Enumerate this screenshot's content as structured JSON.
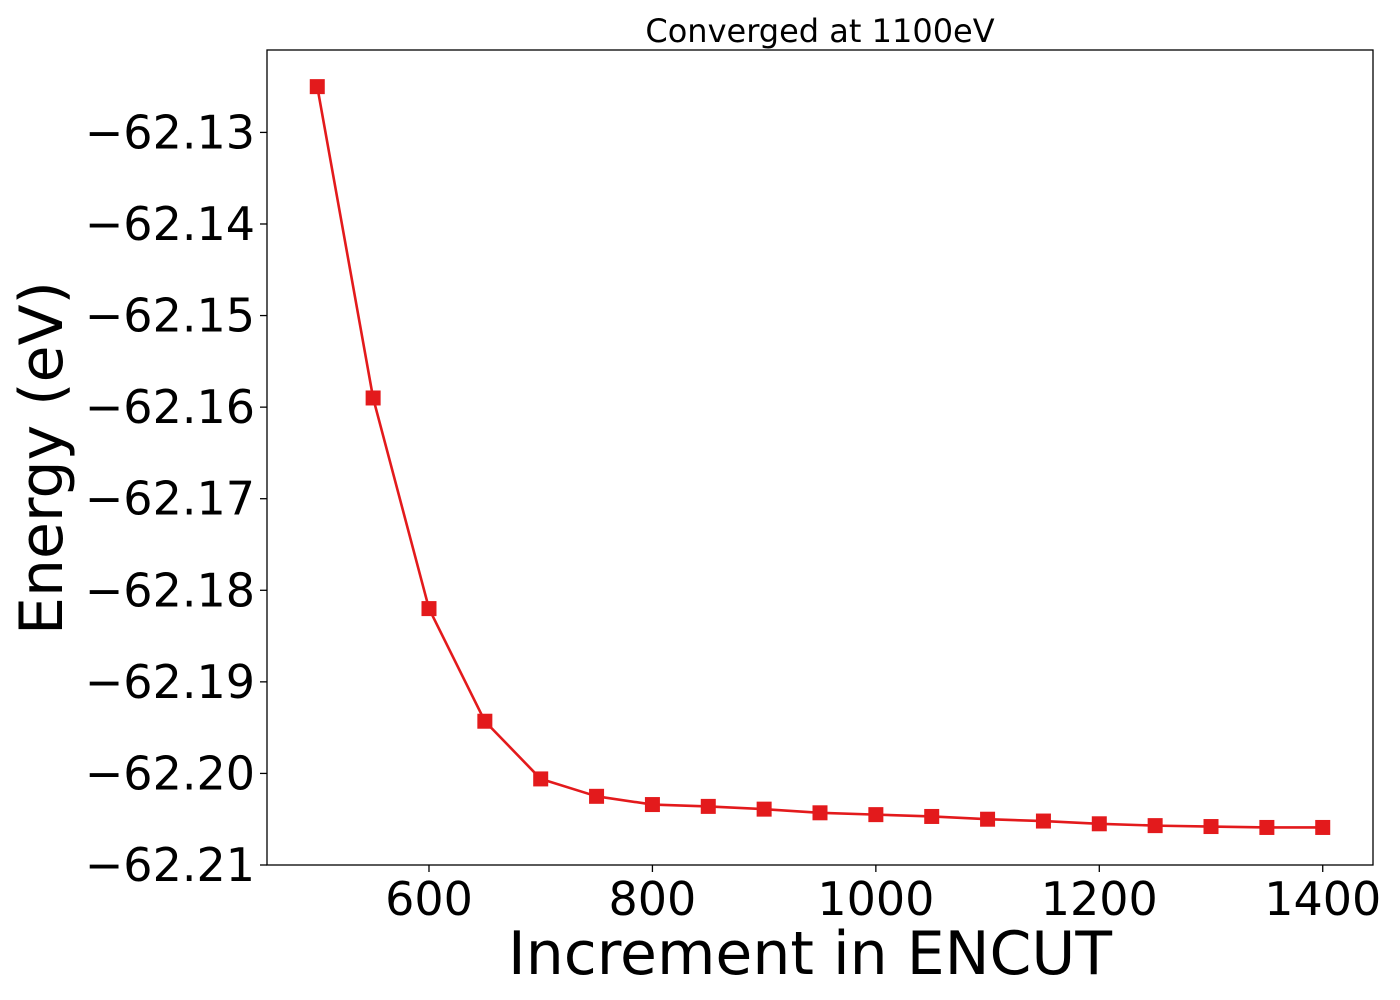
{
  "chart_data": {
    "type": "line",
    "title": "Converged at 1100eV",
    "xlabel": "Increment in ENCUT",
    "ylabel": "Energy (eV)",
    "xlim": [
      455,
      1445
    ],
    "ylim": [
      -62.21,
      -62.121
    ],
    "xticks": [
      600,
      800,
      1000,
      1200,
      1400
    ],
    "xtick_labels": [
      "600",
      "800",
      "1000",
      "1200",
      "1400"
    ],
    "yticks": [
      -62.13,
      -62.14,
      -62.15,
      -62.16,
      -62.17,
      -62.18,
      -62.19,
      -62.2,
      -62.21
    ],
    "ytick_labels": [
      "−62.13",
      "−62.14",
      "−62.15",
      "−62.16",
      "−62.17",
      "−62.18",
      "−62.19",
      "−62.20",
      "−62.21"
    ],
    "grid": false,
    "legend": false,
    "marker": "square",
    "color": "#e31a1c",
    "series": [
      {
        "x": [
          500,
          550,
          600,
          650,
          700,
          750,
          800,
          850,
          900,
          950,
          1000,
          1050,
          1100,
          1150,
          1200,
          1250,
          1300,
          1350,
          1400
        ],
        "y": [
          -62.125,
          -62.159,
          -62.182,
          -62.1943,
          -62.2006,
          -62.2025,
          -62.2034,
          -62.2036,
          -62.2039,
          -62.2043,
          -62.2045,
          -62.2047,
          -62.205,
          -62.2052,
          -62.2055,
          -62.2057,
          -62.2058,
          -62.2059,
          -62.2059
        ]
      }
    ]
  }
}
